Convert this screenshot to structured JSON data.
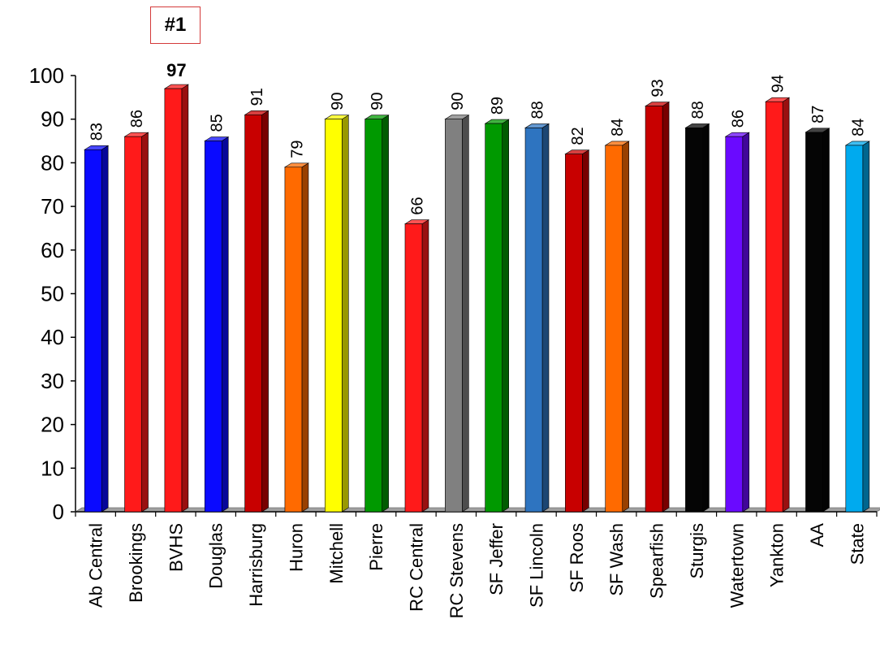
{
  "annotation": {
    "rank_label": "#1"
  },
  "chart_data": {
    "type": "bar",
    "categories": [
      "Ab Central",
      "Brookings",
      "BVHS",
      "Douglas",
      "Harrisburg",
      "Huron",
      "Mitchell",
      "Pierre",
      "RC Central",
      "RC Stevens",
      "SF Jeffer",
      "SF Lincoln",
      "SF Roos",
      "SF Wash",
      "Spearfish",
      "Sturgis",
      "Watertown",
      "Yankton",
      "AA",
      "State"
    ],
    "values": [
      83,
      86,
      97,
      85,
      91,
      79,
      90,
      90,
      66,
      90,
      89,
      88,
      82,
      84,
      93,
      88,
      86,
      94,
      87,
      84
    ],
    "colors": [
      "#0a0aff",
      "#ff1a1a",
      "#ff1a1a",
      "#0a0aff",
      "#c80000",
      "#ff6a00",
      "#ffff00",
      "#009900",
      "#ff1a1a",
      "#808080",
      "#009900",
      "#2e74c0",
      "#c80000",
      "#ff6a00",
      "#c80000",
      "#050505",
      "#6a0aff",
      "#ff1a1a",
      "#050505",
      "#00aaee"
    ],
    "highlight_index": 2,
    "ylim": [
      0,
      100
    ],
    "yticks": [
      0,
      10,
      20,
      30,
      40,
      50,
      60,
      70,
      80,
      90,
      100
    ],
    "title": "",
    "xlabel": "",
    "ylabel": "",
    "grid": false
  }
}
